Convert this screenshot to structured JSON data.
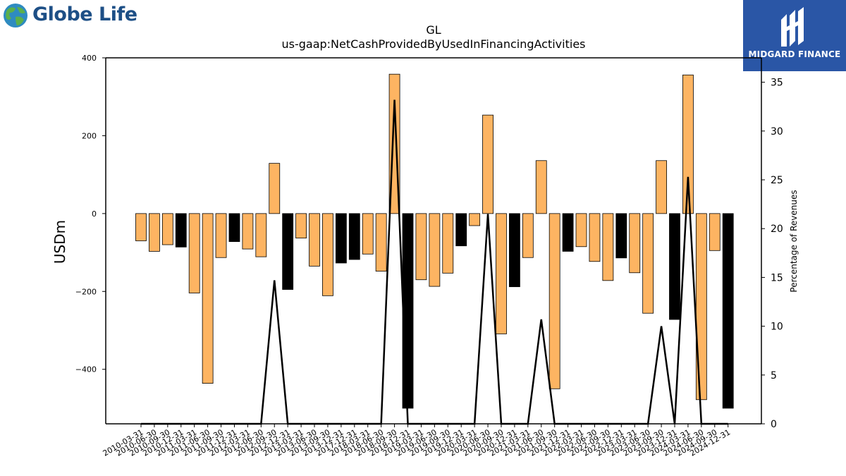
{
  "logos": {
    "left_text": "Globe Life",
    "right_text": "MIDGARD FINANCE"
  },
  "chart_data": {
    "type": "bar",
    "title": "GL",
    "subtitle": "us-gaap:NetCashProvidedByUsedInFinancingActivities",
    "ylabel": "USDm",
    "y2label": "Percentage of Revenues",
    "ylim": [
      -540,
      400
    ],
    "y2lim": [
      0,
      37.5
    ],
    "yticks": [
      400,
      200,
      0,
      -200,
      -400
    ],
    "yticks_labels": [
      "400",
      "200",
      "0",
      "−200",
      "−400"
    ],
    "y2ticks": [
      0,
      5,
      10,
      15,
      20,
      25,
      30,
      35
    ],
    "colors": {
      "orange": "#fdb462",
      "black": "#000000",
      "line": "#000000"
    },
    "categories": [
      "2010-03-31",
      "2010-06-30",
      "2010-09-30",
      "2010-12-31",
      "2011-03-31",
      "2011-06-30",
      "2011-09-30",
      "2011-12-31",
      "2012-03-31",
      "2012-06-30",
      "2012-09-30",
      "2012-12-31",
      "2013-03-31",
      "2013-06-30",
      "2013-09-30",
      "2013-12-31",
      "2017-12-31",
      "2018-03-31",
      "2018-06-30",
      "2018-09-30",
      "2018-12-31",
      "2019-03-31",
      "2019-06-30",
      "2019-09-30",
      "2019-12-31",
      "2020-03-31",
      "2020-06-30",
      "2020-09-30",
      "2020-12-31",
      "2021-03-31",
      "2021-06-30",
      "2021-09-30",
      "2021-12-31",
      "2022-03-31",
      "2022-06-30",
      "2022-09-30",
      "2022-12-31",
      "2023-03-31",
      "2023-06-30",
      "2023-09-30",
      "2023-12-31",
      "2024-03-31",
      "2024-06-30",
      "2024-09-30",
      "2024-12-31"
    ],
    "values": [
      -70,
      -97,
      -80,
      -86,
      -204,
      -436,
      -113,
      -72,
      -91,
      -111,
      129,
      -195,
      -63,
      -135,
      -211,
      -127,
      -118,
      -104,
      -148,
      358,
      -500,
      -170,
      -187,
      -153,
      -83,
      -31,
      253,
      -309,
      -188,
      -113,
      136,
      -450,
      -97,
      -85,
      -123,
      -172,
      -114,
      -152,
      -256,
      136,
      -272,
      356,
      -478,
      -95,
      -500
    ],
    "bar_colors": [
      "orange",
      "orange",
      "orange",
      "black",
      "orange",
      "orange",
      "orange",
      "black",
      "orange",
      "orange",
      "orange",
      "black",
      "orange",
      "orange",
      "orange",
      "black",
      "black",
      "orange",
      "orange",
      "orange",
      "black",
      "orange",
      "orange",
      "orange",
      "black",
      "orange",
      "orange",
      "orange",
      "black",
      "orange",
      "orange",
      "orange",
      "black",
      "orange",
      "orange",
      "orange",
      "black",
      "orange",
      "orange",
      "orange",
      "black",
      "orange",
      "orange",
      "orange",
      "black"
    ],
    "pct_of_revenues": [
      0,
      0,
      0,
      0,
      0,
      0,
      0,
      0,
      0,
      0,
      14.7,
      0,
      0,
      0,
      0,
      0,
      0,
      0,
      0,
      33.2,
      0,
      0,
      0,
      0,
      0,
      0,
      21.5,
      0,
      0,
      0,
      10.7,
      0,
      0,
      0,
      0,
      0,
      0,
      0,
      0,
      10,
      0,
      25.3,
      0,
      0,
      0
    ]
  }
}
